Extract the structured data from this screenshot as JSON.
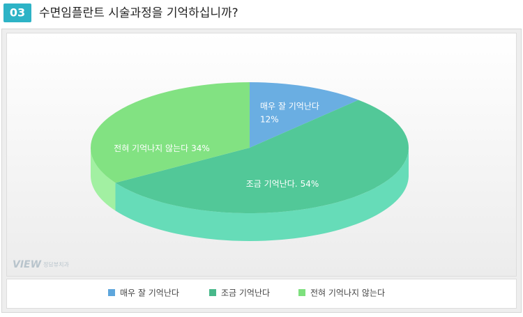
{
  "chart_data": {
    "type": "pie3d",
    "badge": "03",
    "title": "수면임플란트 시술과정을 기억하십니까?",
    "categories": [
      "매우 잘 기억난다",
      "조금 기억난다",
      "전혀 기억나지 않는다"
    ],
    "values": [
      12,
      54,
      34
    ],
    "label_names": [
      "매우 잘 기억난다",
      "조금 기억난다.",
      "전혀 기억나지 않는다"
    ],
    "value_labels": [
      "12%",
      "54%",
      "34%"
    ],
    "colors": [
      "#6aaee2",
      "#52c898",
      "#82e282"
    ],
    "side_colors": [
      "#5a9ccf",
      "#66dcb8",
      "#a2f0a2"
    ],
    "legend_colors": [
      "#5ea6dc",
      "#48b88a",
      "#7ee07e"
    ],
    "watermark": [
      "VIEW",
      "정담뷰치과"
    ]
  }
}
